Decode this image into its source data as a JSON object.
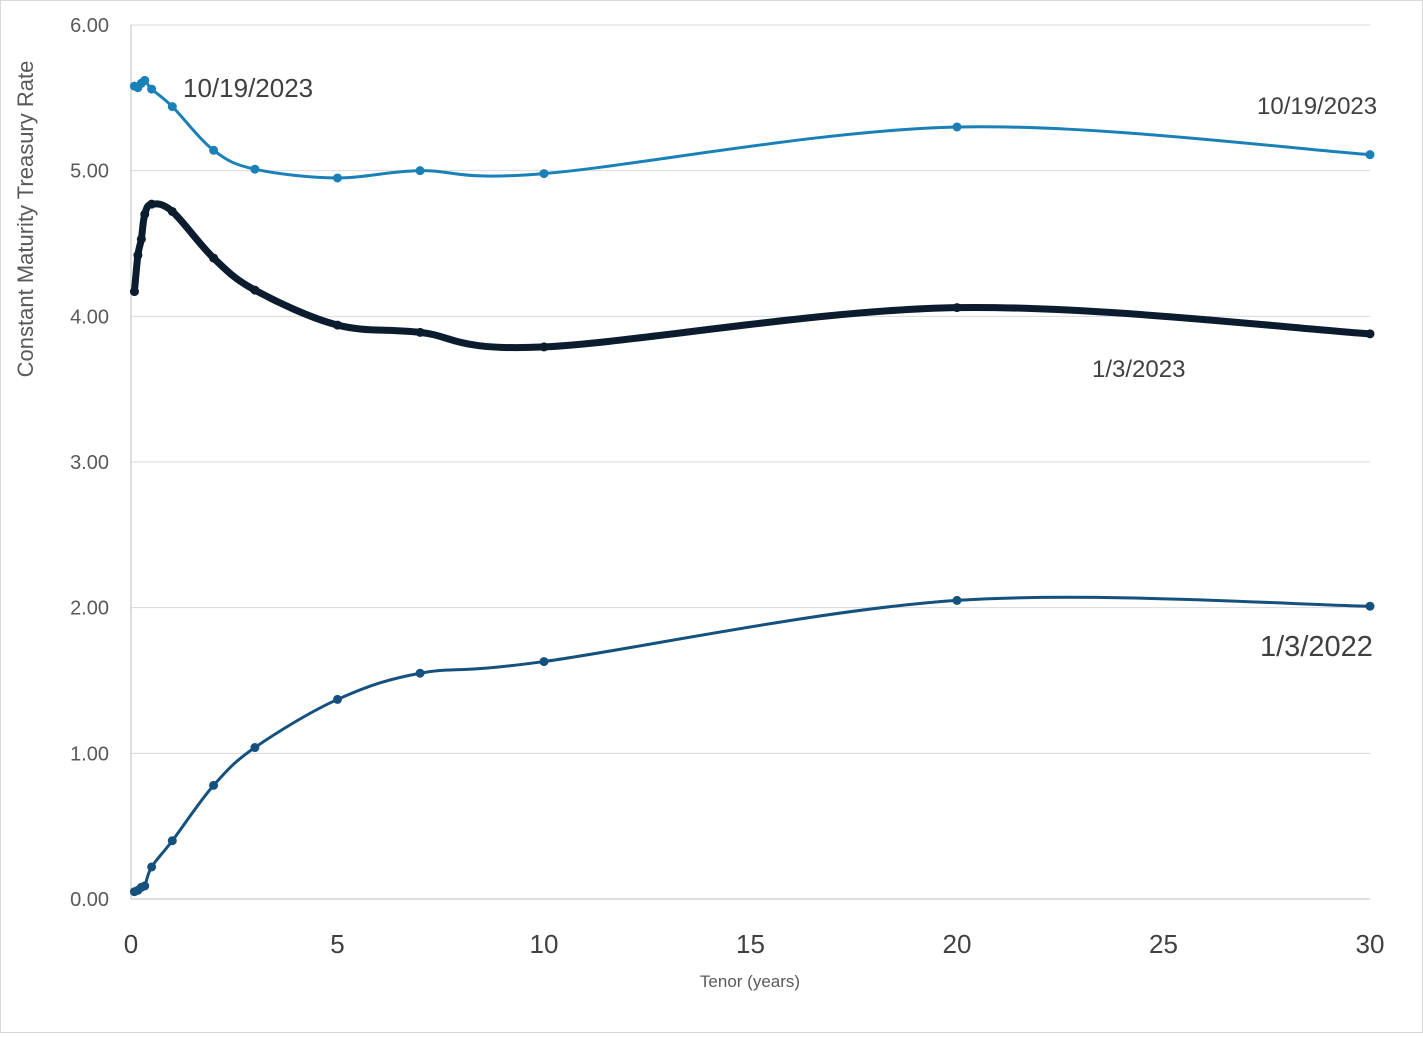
{
  "chart_data": {
    "type": "line",
    "title": "",
    "xlabel": "Tenor (years)",
    "ylabel": "Constant Maturity Treasury Rate",
    "xlim": [
      0,
      30
    ],
    "ylim": [
      0,
      6
    ],
    "x_ticks": [
      "0",
      "5",
      "10",
      "15",
      "20",
      "25",
      "30"
    ],
    "y_ticks": [
      "0.00",
      "1.00",
      "2.00",
      "3.00",
      "4.00",
      "5.00",
      "6.00"
    ],
    "grid": "horizontal",
    "legend": "none",
    "series": [
      {
        "name": "10/19/2023",
        "color": "#1a80b8",
        "points": [
          [
            0.083,
            5.58
          ],
          [
            0.167,
            5.57
          ],
          [
            0.25,
            5.6
          ],
          [
            0.333,
            5.62
          ],
          [
            0.5,
            5.56
          ],
          [
            1,
            5.44
          ],
          [
            2,
            5.14
          ],
          [
            3,
            5.01
          ],
          [
            5,
            4.95
          ],
          [
            7,
            5.0
          ],
          [
            10,
            4.98
          ],
          [
            20,
            5.3
          ],
          [
            30,
            5.11
          ]
        ]
      },
      {
        "name": "1/3/2023",
        "color": "#0a1c2e",
        "points": [
          [
            0.083,
            4.17
          ],
          [
            0.167,
            4.42
          ],
          [
            0.25,
            4.53
          ],
          [
            0.333,
            4.7
          ],
          [
            0.5,
            4.77
          ],
          [
            1,
            4.72
          ],
          [
            2,
            4.4
          ],
          [
            3,
            4.18
          ],
          [
            5,
            3.94
          ],
          [
            7,
            3.89
          ],
          [
            10,
            3.79
          ],
          [
            20,
            4.06
          ],
          [
            30,
            3.88
          ]
        ]
      },
      {
        "name": "1/3/2022",
        "color": "#15517e",
        "points": [
          [
            0.083,
            0.05
          ],
          [
            0.167,
            0.06
          ],
          [
            0.25,
            0.08
          ],
          [
            0.333,
            0.09
          ],
          [
            0.5,
            0.22
          ],
          [
            1,
            0.4
          ],
          [
            2,
            0.78
          ],
          [
            3,
            1.04
          ],
          [
            5,
            1.37
          ],
          [
            7,
            1.55
          ],
          [
            10,
            1.63
          ],
          [
            20,
            2.05
          ],
          [
            30,
            2.01
          ]
        ]
      }
    ],
    "annotations": [
      {
        "text": "10/19/2023",
        "series": 0
      },
      {
        "text": "10/19/2023",
        "series": 0
      },
      {
        "text": "1/3/2023",
        "series": 1
      },
      {
        "text": "1/3/2022",
        "series": 2
      }
    ]
  }
}
